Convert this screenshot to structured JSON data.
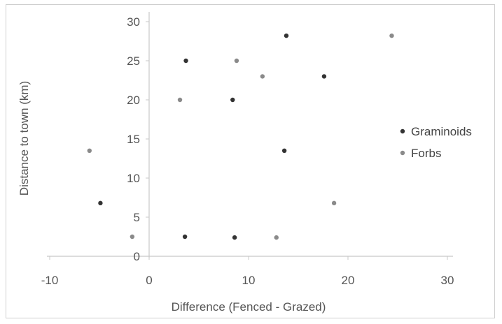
{
  "chart_data": {
    "type": "scatter",
    "title": "",
    "xlabel": "Difference (Fenced - Grazed)",
    "ylabel": "Distance to town (km)",
    "xlim": [
      -10,
      30
    ],
    "ylim": [
      0,
      30
    ],
    "xticks": [
      -10,
      0,
      10,
      20,
      30
    ],
    "yticks": [
      0,
      5,
      10,
      15,
      20,
      25,
      30
    ],
    "grid": false,
    "legend_position": "right",
    "series": [
      {
        "name": "Graminoids",
        "color": "#333333",
        "points": [
          {
            "x": 13.8,
            "y": 28.2
          },
          {
            "x": 3.7,
            "y": 25.0
          },
          {
            "x": 17.6,
            "y": 23.0
          },
          {
            "x": 8.4,
            "y": 20.0
          },
          {
            "x": 13.6,
            "y": 13.5
          },
          {
            "x": -4.9,
            "y": 6.8
          },
          {
            "x": 3.6,
            "y": 2.5
          },
          {
            "x": 8.6,
            "y": 2.4
          }
        ]
      },
      {
        "name": "Forbs",
        "color": "#8a8a8a",
        "points": [
          {
            "x": 24.4,
            "y": 28.2
          },
          {
            "x": 8.8,
            "y": 25.0
          },
          {
            "x": 11.4,
            "y": 23.0
          },
          {
            "x": 3.1,
            "y": 20.0
          },
          {
            "x": -6.0,
            "y": 13.5
          },
          {
            "x": 18.6,
            "y": 6.8
          },
          {
            "x": -1.7,
            "y": 2.5
          },
          {
            "x": 12.8,
            "y": 2.4
          }
        ]
      }
    ]
  }
}
